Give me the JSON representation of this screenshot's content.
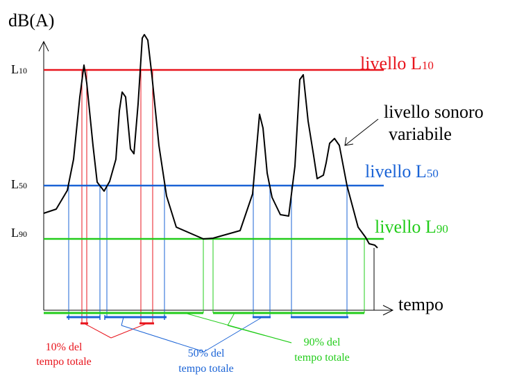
{
  "axes": {
    "y_label": "dB(A)",
    "x_label": "tempo",
    "y_ticks": [
      {
        "prefix": "L",
        "sub": "10"
      },
      {
        "prefix": "L",
        "sub": "50"
      },
      {
        "prefix": "L",
        "sub": "90"
      }
    ]
  },
  "levels": [
    {
      "key": "l10",
      "prefix": "livello L",
      "sub": "10",
      "color": "#e8141c"
    },
    {
      "key": "l50",
      "prefix": "livello L",
      "sub": "50",
      "color": "#1a63d6"
    },
    {
      "key": "l90",
      "prefix": "livello L",
      "sub": "90",
      "color": "#22cc1a"
    }
  ],
  "signal_label": {
    "line1": "livello sonoro",
    "line2": "variabile",
    "color": "#000000"
  },
  "notes": [
    {
      "key": "l10",
      "line1": "10% del",
      "line2": "tempo totale",
      "color": "#e8141c"
    },
    {
      "key": "l50",
      "line1": "50% del",
      "line2": "tempo totale",
      "color": "#1a63d6"
    },
    {
      "key": "l90",
      "line1": "90% del",
      "line2": "tempo totale",
      "color": "#22cc1a"
    }
  ]
}
